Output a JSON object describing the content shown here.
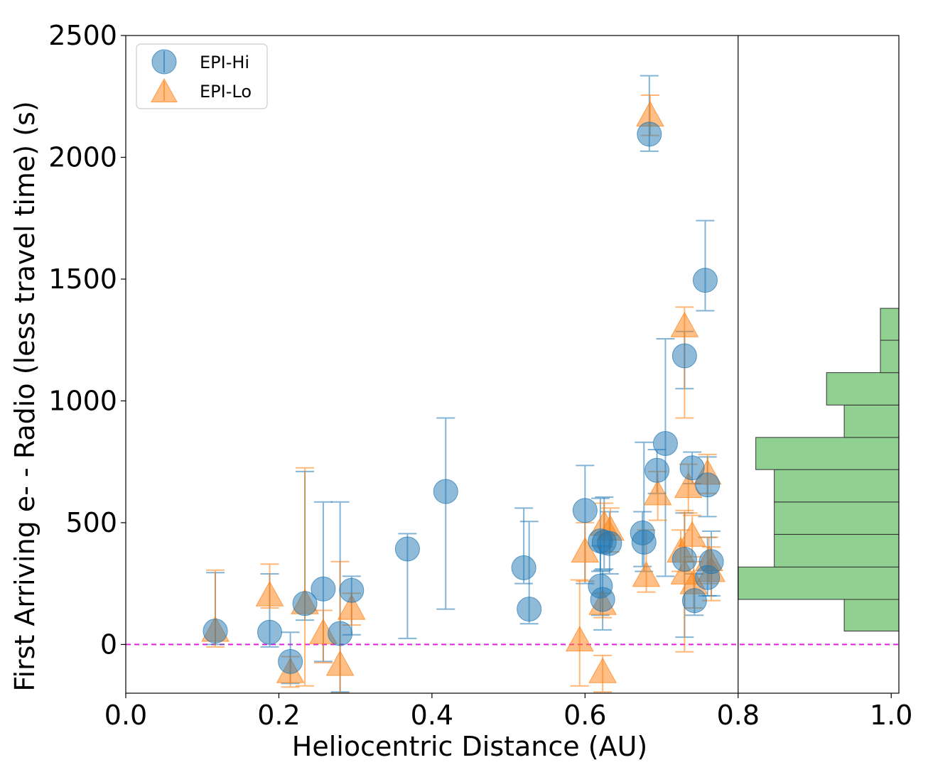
{
  "chart_data": {
    "type": "scatter",
    "xlabel": "Heliocentric Distance (AU)",
    "ylabel": "First Arriving e- - Radio (less travel time) (s)",
    "xlim": [
      0.0,
      1.01
    ],
    "ylim": [
      -200,
      2500
    ],
    "x_ticks": [
      "0.0",
      "0.2",
      "0.4",
      "0.6",
      "0.8",
      "1.0"
    ],
    "y_ticks": [
      "0",
      "500",
      "1000",
      "1500",
      "2000",
      "2500"
    ],
    "grid": false,
    "legend_position": "top-left",
    "reference_line": {
      "y": 0,
      "style": "dashed",
      "color": "#e31ee3"
    },
    "divider_x": 0.8,
    "series": [
      {
        "name": "EPI-Hi",
        "marker": "circle",
        "color": "#1f77b4",
        "points": [
          {
            "x": 0.117,
            "y": 55,
            "lo": 0,
            "hi": 295
          },
          {
            "x": 0.188,
            "y": 50,
            "lo": -10,
            "hi": 290
          },
          {
            "x": 0.215,
            "y": -70,
            "lo": -160,
            "hi": 50
          },
          {
            "x": 0.234,
            "y": 168,
            "lo": 100,
            "hi": 710
          },
          {
            "x": 0.258,
            "y": 228,
            "lo": -70,
            "hi": 585
          },
          {
            "x": 0.28,
            "y": 45,
            "lo": -195,
            "hi": 585
          },
          {
            "x": 0.295,
            "y": 222,
            "lo": 40,
            "hi": 280
          },
          {
            "x": 0.368,
            "y": 392,
            "lo": 25,
            "hi": 455
          },
          {
            "x": 0.418,
            "y": 628,
            "lo": 145,
            "hi": 930
          },
          {
            "x": 0.52,
            "y": 315,
            "lo": 250,
            "hi": 560
          },
          {
            "x": 0.527,
            "y": 145,
            "lo": 85,
            "hi": 505
          },
          {
            "x": 0.6,
            "y": 550,
            "lo": 250,
            "hi": 735
          },
          {
            "x": 0.62,
            "y": 425,
            "lo": 300,
            "hi": 600
          },
          {
            "x": 0.625,
            "y": 420,
            "lo": 310,
            "hi": 605
          },
          {
            "x": 0.62,
            "y": 240,
            "lo": 120,
            "hi": 405
          },
          {
            "x": 0.623,
            "y": 185,
            "lo": 60,
            "hi": 305
          },
          {
            "x": 0.632,
            "y": 415,
            "lo": 290,
            "hi": 545
          },
          {
            "x": 0.675,
            "y": 458,
            "lo": 320,
            "hi": 545
          },
          {
            "x": 0.677,
            "y": 420,
            "lo": 300,
            "hi": 830
          },
          {
            "x": 0.684,
            "y": 2095,
            "lo": 2025,
            "hi": 2335
          },
          {
            "x": 0.694,
            "y": 715,
            "lo": 620,
            "hi": 800
          },
          {
            "x": 0.705,
            "y": 825,
            "lo": 280,
            "hi": 1255
          },
          {
            "x": 0.73,
            "y": 350,
            "lo": 30,
            "hi": 540
          },
          {
            "x": 0.73,
            "y": 1185,
            "lo": 1050,
            "hi": 1285
          },
          {
            "x": 0.74,
            "y": 725,
            "lo": 660,
            "hi": 790
          },
          {
            "x": 0.743,
            "y": 180,
            "lo": 120,
            "hi": 290
          },
          {
            "x": 0.757,
            "y": 1495,
            "lo": 1370,
            "hi": 1740
          },
          {
            "x": 0.76,
            "y": 655,
            "lo": 525,
            "hi": 770
          },
          {
            "x": 0.76,
            "y": 275,
            "lo": 200,
            "hi": 440
          },
          {
            "x": 0.765,
            "y": 340,
            "lo": 200,
            "hi": 465
          }
        ]
      },
      {
        "name": "EPI-Lo",
        "marker": "triangle",
        "color": "#ff7f0e",
        "points": [
          {
            "x": 0.117,
            "y": 55,
            "lo": -10,
            "hi": 305
          },
          {
            "x": 0.188,
            "y": 200,
            "lo": 150,
            "hi": 330
          },
          {
            "x": 0.215,
            "y": -115,
            "lo": -175,
            "hi": -50
          },
          {
            "x": 0.234,
            "y": 168,
            "lo": -170,
            "hi": 725
          },
          {
            "x": 0.258,
            "y": 45,
            "lo": -75,
            "hi": 140
          },
          {
            "x": 0.28,
            "y": -85,
            "lo": -200,
            "hi": 340
          },
          {
            "x": 0.295,
            "y": 145,
            "lo": 80,
            "hi": 210
          },
          {
            "x": 0.593,
            "y": 15,
            "lo": -170,
            "hi": 265
          },
          {
            "x": 0.6,
            "y": 380,
            "lo": 260,
            "hi": 500
          },
          {
            "x": 0.623,
            "y": -115,
            "lo": -195,
            "hi": -45
          },
          {
            "x": 0.623,
            "y": 165,
            "lo": 110,
            "hi": 210
          },
          {
            "x": 0.625,
            "y": 490,
            "lo": 400,
            "hi": 580
          },
          {
            "x": 0.633,
            "y": 470,
            "lo": 380,
            "hi": 560
          },
          {
            "x": 0.68,
            "y": 280,
            "lo": 215,
            "hi": 470
          },
          {
            "x": 0.685,
            "y": 2170,
            "lo": 2090,
            "hi": 2255
          },
          {
            "x": 0.695,
            "y": 615,
            "lo": 510,
            "hi": 710
          },
          {
            "x": 0.725,
            "y": 380,
            "lo": 300,
            "hi": 470
          },
          {
            "x": 0.73,
            "y": 290,
            "lo": -30,
            "hi": 550
          },
          {
            "x": 0.73,
            "y": 1305,
            "lo": 930,
            "hi": 1385
          },
          {
            "x": 0.735,
            "y": 645,
            "lo": 540,
            "hi": 740
          },
          {
            "x": 0.74,
            "y": 445,
            "lo": 360,
            "hi": 530
          },
          {
            "x": 0.742,
            "y": 250,
            "lo": 150,
            "hi": 340
          },
          {
            "x": 0.76,
            "y": 700,
            "lo": 620,
            "hi": 780
          },
          {
            "x": 0.762,
            "y": 345,
            "lo": 250,
            "hi": 440
          },
          {
            "x": 0.765,
            "y": 300,
            "lo": 180,
            "hi": 400
          }
        ]
      }
    ],
    "histogram": {
      "orientation": "horizontal",
      "color": "#90d090",
      "bins": [
        {
          "y0": 55,
          "y1": 185,
          "value": 0.068
        },
        {
          "y0": 185,
          "y1": 318,
          "value": 0.2
        },
        {
          "y0": 318,
          "y1": 452,
          "value": 0.155
        },
        {
          "y0": 452,
          "y1": 585,
          "value": 0.155
        },
        {
          "y0": 585,
          "y1": 718,
          "value": 0.155
        },
        {
          "y0": 718,
          "y1": 850,
          "value": 0.178
        },
        {
          "y0": 850,
          "y1": 983,
          "value": 0.068
        },
        {
          "y0": 983,
          "y1": 1116,
          "value": 0.09
        },
        {
          "y0": 1116,
          "y1": 1249,
          "value": 0.023
        },
        {
          "y0": 1249,
          "y1": 1380,
          "value": 0.023
        }
      ]
    }
  }
}
